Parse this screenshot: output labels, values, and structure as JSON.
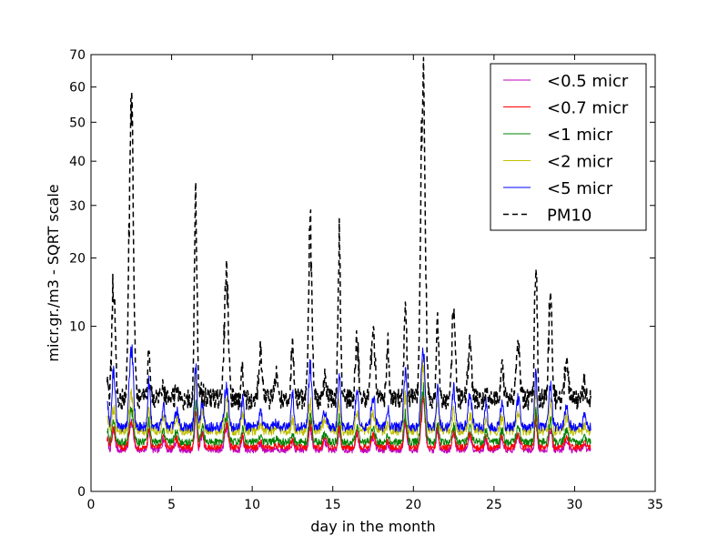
{
  "chart_data": {
    "type": "line",
    "title": "",
    "xlabel": "day in the month",
    "ylabel": "micr.gr./m3 - SQRT scale",
    "y_scale": "sqrt",
    "xlim": [
      0,
      35
    ],
    "ylim": [
      0,
      70
    ],
    "x_ticks": [
      0,
      5,
      10,
      15,
      20,
      25,
      30,
      35
    ],
    "y_ticks": [
      0,
      10,
      20,
      30,
      40,
      50,
      60,
      70
    ],
    "grid": false,
    "legend_position": "top-right",
    "peak_days": [
      1.0,
      1.4,
      2.5,
      3.6,
      4.5,
      5.3,
      6.5,
      6.9,
      8.4,
      9.4,
      10.5,
      11.5,
      12.5,
      13.6,
      14.5,
      15.4,
      16.5,
      17.5,
      18.4,
      19.5,
      20.6,
      21.5,
      22.5,
      23.5,
      24.5,
      25.5,
      26.5,
      27.6,
      28.5,
      29.5,
      30.6
    ],
    "series": [
      {
        "name": "<0.5 micr",
        "color": "#bf00bf",
        "style": "solid",
        "values": [
          1.0,
          1.3,
          1.8,
          1.3,
          1.0,
          0.9,
          2.2,
          1.2,
          1.5,
          1.1,
          0.8,
          0.7,
          0.9,
          1.5,
          0.9,
          1.4,
          1.2,
          1.1,
          0.8,
          1.6,
          2.8,
          1.4,
          1.2,
          1.1,
          1.0,
          1.0,
          1.1,
          1.8,
          1.4,
          1.0,
          0.8
        ]
      },
      {
        "name": "<0.7 micr",
        "color": "#ff0000",
        "style": "solid",
        "values": [
          1.1,
          1.4,
          2.0,
          1.4,
          1.1,
          1.0,
          2.5,
          1.3,
          1.7,
          1.2,
          0.9,
          0.8,
          1.0,
          1.7,
          1.0,
          1.6,
          1.3,
          1.2,
          0.9,
          1.8,
          3.2,
          1.5,
          1.3,
          1.2,
          1.1,
          1.1,
          1.2,
          2.0,
          1.5,
          1.1,
          0.9
        ]
      },
      {
        "name": "<1 micr",
        "color": "#008000",
        "style": "solid",
        "values": [
          1.4,
          1.7,
          2.5,
          1.8,
          1.4,
          1.3,
          3.0,
          1.6,
          2.1,
          1.5,
          1.1,
          1.0,
          1.3,
          2.1,
          1.2,
          2.0,
          1.6,
          1.5,
          1.1,
          2.2,
          3.9,
          1.9,
          1.6,
          1.5,
          1.4,
          1.4,
          1.5,
          2.4,
          1.9,
          1.4,
          1.1
        ]
      },
      {
        "name": "<2 micr",
        "color": "#bfbf00",
        "style": "solid",
        "values": [
          2.2,
          2.6,
          3.6,
          2.6,
          2.0,
          1.9,
          4.8,
          2.4,
          3.1,
          2.2,
          1.6,
          1.5,
          1.9,
          3.0,
          1.8,
          3.0,
          2.4,
          2.2,
          1.6,
          3.3,
          5.8,
          2.8,
          2.4,
          2.2,
          2.0,
          2.0,
          2.2,
          3.6,
          2.8,
          2.0,
          1.6
        ]
      },
      {
        "name": "<5 micr",
        "color": "#0000ff",
        "style": "solid",
        "values": [
          3.0,
          5.5,
          7.5,
          4.5,
          2.6,
          2.4,
          6.0,
          3.0,
          4.2,
          3.2,
          2.4,
          1.7,
          3.6,
          5.8,
          2.4,
          5.0,
          3.6,
          3.4,
          2.6,
          5.0,
          7.5,
          4.2,
          3.8,
          3.4,
          2.8,
          2.8,
          3.2,
          5.4,
          4.0,
          2.8,
          2.1
        ]
      },
      {
        "name": "PM10",
        "color": "#000000",
        "style": "dashed",
        "values": [
          4.5,
          16.5,
          51.0,
          7.0,
          4.0,
          3.5,
          32.5,
          3.8,
          16.5,
          5.5,
          7.5,
          5.0,
          8.0,
          25.0,
          4.5,
          23.0,
          8.5,
          9.0,
          8.5,
          11.0,
          62.0,
          10.5,
          13.5,
          7.5,
          4.0,
          6.5,
          7.0,
          19.0,
          14.0,
          6.0,
          4.3
        ]
      }
    ]
  }
}
